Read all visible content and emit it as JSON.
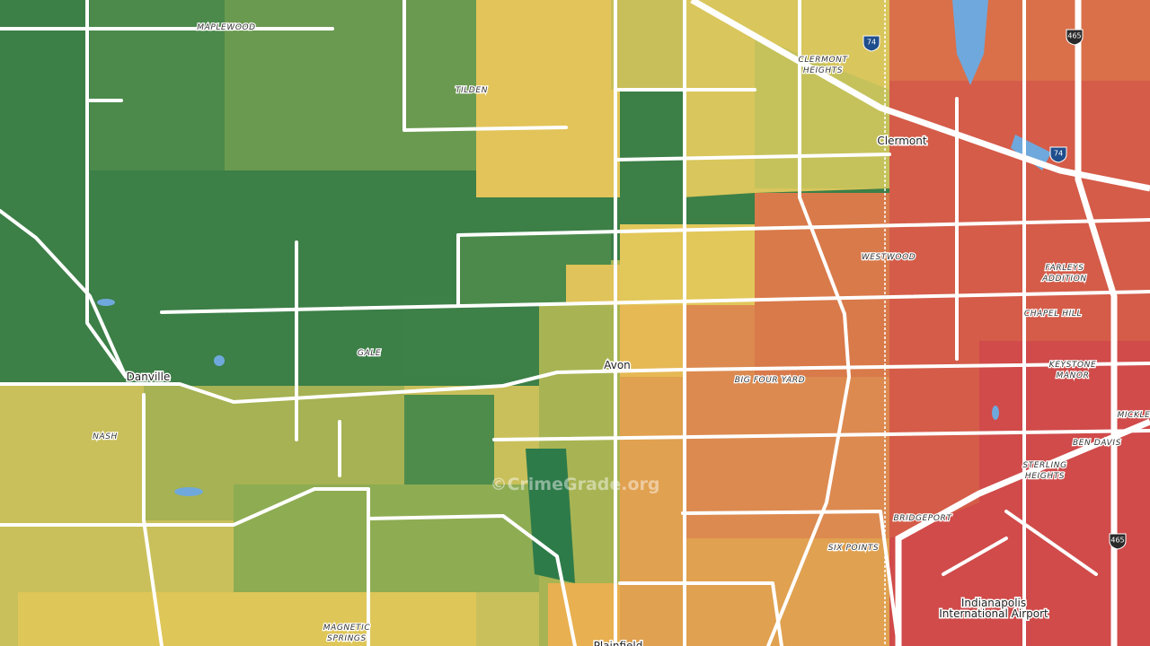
{
  "map": {
    "labels": [
      {
        "lines": [
          "MAPLEWOOD"
        ]
      },
      {
        "lines": [
          "TILDEN"
        ]
      },
      {
        "lines": [
          "CLERMONT",
          "HEIGHTS"
        ]
      },
      {
        "lines": [
          "WESTWOOD"
        ]
      },
      {
        "lines": [
          "FARLEYS",
          "ADDITION"
        ]
      },
      {
        "lines": [
          "CHAPEL HILL"
        ]
      },
      {
        "lines": [
          "KEYSTONE",
          "MANOR"
        ]
      },
      {
        "lines": [
          "MICKLE"
        ]
      },
      {
        "lines": [
          "BEN DAVIS"
        ]
      },
      {
        "lines": [
          "STERLING",
          "HEIGHTS"
        ]
      },
      {
        "lines": [
          "BRIDGEPORT"
        ]
      },
      {
        "lines": [
          "SIX POINTS"
        ]
      },
      {
        "lines": [
          "BIG FOUR YARD"
        ]
      },
      {
        "lines": [
          "GALE"
        ]
      },
      {
        "lines": [
          "NASH"
        ]
      },
      {
        "lines": [
          "MAGNETIC",
          "SPRINGS"
        ]
      }
    ],
    "places": [
      {
        "lines": [
          "Clermont"
        ]
      },
      {
        "lines": [
          "Avon"
        ]
      },
      {
        "lines": [
          "Danville"
        ]
      },
      {
        "lines": [
          "Indianapolis",
          "International Airport"
        ]
      },
      {
        "lines": [
          "Plainfield"
        ]
      }
    ],
    "shields": [
      "74",
      "465",
      "74",
      "465"
    ],
    "watermark": "©CrimeGrade.org"
  }
}
